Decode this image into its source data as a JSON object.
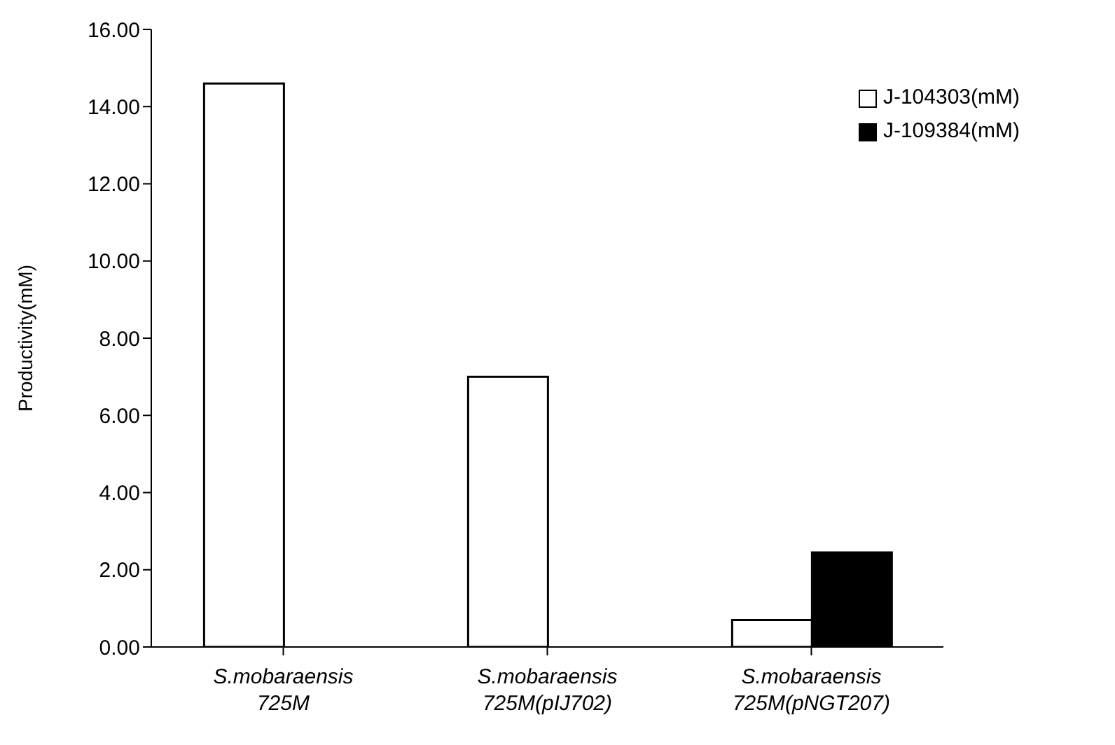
{
  "chart_data": {
    "type": "bar",
    "ylabel": "Productivity(mM)",
    "categories": [
      "S.mobaraensis\n725M",
      "S.mobaraensis\n725M(pIJ702)",
      "S.mobaraensis\n725M(pNGT207)"
    ],
    "series": [
      {
        "name": "J-104303(mM)",
        "color": "#ffffff",
        "values": [
          14.6,
          7.0,
          0.7
        ]
      },
      {
        "name": "J-109384(mM)",
        "color": "#000000",
        "values": [
          null,
          null,
          2.45
        ]
      }
    ],
    "ylim": [
      0,
      16
    ],
    "yticks": [
      {
        "value": 0,
        "label": "0.00"
      },
      {
        "value": 2,
        "label": "2.00"
      },
      {
        "value": 4,
        "label": "4.00"
      },
      {
        "value": 6,
        "label": "6.00"
      },
      {
        "value": 8,
        "label": "8.00"
      },
      {
        "value": 10,
        "label": "10.00"
      },
      {
        "value": 12,
        "label": "12.00"
      },
      {
        "value": 14,
        "label": "14.00"
      },
      {
        "value": 16,
        "label": "16.00"
      }
    ],
    "grid": false,
    "legend": "top right"
  }
}
